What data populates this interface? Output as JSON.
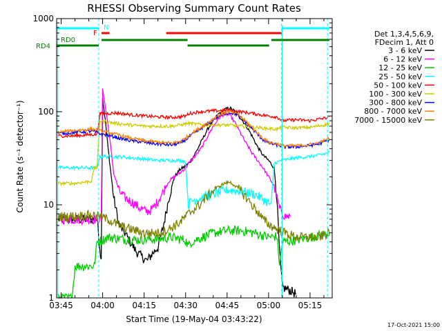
{
  "chart_data": {
    "type": "line",
    "title": "RHESSI Observing Summary Count Rates",
    "xlabel": "Start Time (19-May-04 03:43:22)",
    "ylabel": "Count Rate (s⁻¹ detector⁻¹)",
    "yscale": "log",
    "ylim": [
      1,
      1000
    ],
    "xlim_minutes": [
      223.37,
      323.0
    ],
    "x_ticks": [
      {
        "label": "03:45",
        "t": 225
      },
      {
        "label": "04:00",
        "t": 240
      },
      {
        "label": "04:15",
        "t": 255
      },
      {
        "label": "04:30",
        "t": 270
      },
      {
        "label": "04:45",
        "t": 285
      },
      {
        "label": "05:00",
        "t": 300
      },
      {
        "label": "05:15",
        "t": 315
      }
    ],
    "y_ticks": [
      {
        "label": "1",
        "v": 1
      },
      {
        "label": "10",
        "v": 10
      },
      {
        "label": "100",
        "v": 100
      },
      {
        "label": "1000",
        "v": 1000
      }
    ],
    "legend_header": [
      "Det 1,3,4,5,6,9,",
      "FDecim 1, Att 0"
    ],
    "series": [
      {
        "name": "3 - 6 keV",
        "color": "#000000",
        "points": [
          [
            224,
            7
          ],
          [
            238,
            7
          ],
          [
            239.5,
            2.5
          ],
          [
            240,
            140
          ],
          [
            241,
            80
          ],
          [
            242,
            40
          ],
          [
            244,
            12
          ],
          [
            246,
            6
          ],
          [
            248,
            5
          ],
          [
            250,
            4
          ],
          [
            252,
            3.2
          ],
          [
            254,
            2.8
          ],
          [
            256,
            2.5
          ],
          [
            258,
            3
          ],
          [
            260,
            3.5
          ],
          [
            262,
            6
          ],
          [
            264,
            12
          ],
          [
            266,
            20
          ],
          [
            268,
            24
          ],
          [
            270,
            26
          ],
          [
            272,
            30
          ],
          [
            274,
            38
          ],
          [
            276,
            50
          ],
          [
            278,
            65
          ],
          [
            280,
            80
          ],
          [
            282,
            95
          ],
          [
            284,
            105
          ],
          [
            286,
            110
          ],
          [
            288,
            100
          ],
          [
            290,
            85
          ],
          [
            292,
            70
          ],
          [
            294,
            55
          ],
          [
            296,
            42
          ],
          [
            298,
            34
          ],
          [
            300,
            30
          ],
          [
            302,
            25
          ],
          [
            303,
            12
          ],
          [
            304,
            3
          ],
          [
            305,
            1.3
          ],
          [
            308,
            1.2
          ],
          [
            310,
            1.1
          ]
        ]
      },
      {
        "name": "6 - 12 keV",
        "color": "#ff00ff",
        "points": [
          [
            224,
            7
          ],
          [
            238,
            7
          ],
          [
            239.5,
            7
          ],
          [
            240,
            180
          ],
          [
            241,
            110
          ],
          [
            242,
            70
          ],
          [
            243,
            40
          ],
          [
            244,
            22
          ],
          [
            246,
            14
          ],
          [
            248,
            12
          ],
          [
            250,
            11
          ],
          [
            252,
            10
          ],
          [
            254,
            9
          ],
          [
            256,
            8.5
          ],
          [
            258,
            9
          ],
          [
            260,
            11
          ],
          [
            262,
            14
          ],
          [
            264,
            18
          ],
          [
            266,
            20
          ],
          [
            268,
            22
          ],
          [
            270,
            25
          ],
          [
            272,
            30
          ],
          [
            274,
            35
          ],
          [
            276,
            42
          ],
          [
            278,
            55
          ],
          [
            280,
            70
          ],
          [
            282,
            85
          ],
          [
            284,
            95
          ],
          [
            286,
            92
          ],
          [
            288,
            75
          ],
          [
            290,
            58
          ],
          [
            292,
            45
          ],
          [
            294,
            36
          ],
          [
            296,
            30
          ],
          [
            298,
            25
          ],
          [
            300,
            20
          ],
          [
            302,
            16
          ],
          [
            304,
            9
          ],
          [
            306,
            7.5
          ],
          [
            308,
            7.5
          ]
        ]
      },
      {
        "name": "12 - 25 keV",
        "color": "#00cc00",
        "points": [
          [
            224,
            1
          ],
          [
            229,
            1
          ],
          [
            230,
            2.2
          ],
          [
            237,
            2.2
          ],
          [
            238,
            4
          ],
          [
            240,
            4.2
          ],
          [
            242,
            4.5
          ],
          [
            250,
            4.2
          ],
          [
            260,
            4.3
          ],
          [
            265,
            4.5
          ],
          [
            268,
            4.3
          ],
          [
            270,
            4.2
          ],
          [
            271,
            3.6
          ],
          [
            272,
            4
          ],
          [
            276,
            4.5
          ],
          [
            280,
            5
          ],
          [
            285,
            5.3
          ],
          [
            290,
            5.3
          ],
          [
            295,
            5
          ],
          [
            298,
            4.7
          ],
          [
            300,
            4.5
          ],
          [
            303,
            4.6
          ],
          [
            304,
            2.3
          ],
          [
            305,
            4
          ],
          [
            310,
            4.2
          ],
          [
            315,
            4.5
          ],
          [
            320,
            4.8
          ],
          [
            322,
            5
          ]
        ]
      },
      {
        "name": "25 - 50 keV",
        "color": "#00ffff",
        "points": [
          [
            224,
            25
          ],
          [
            235,
            25
          ],
          [
            238,
            25
          ],
          [
            239,
            33
          ],
          [
            245,
            33
          ],
          [
            250,
            32
          ],
          [
            255,
            31
          ],
          [
            260,
            30
          ],
          [
            265,
            30
          ],
          [
            268,
            30
          ],
          [
            270,
            29
          ],
          [
            271,
            10
          ],
          [
            272,
            11
          ],
          [
            276,
            12
          ],
          [
            280,
            13
          ],
          [
            285,
            14.5
          ],
          [
            290,
            14
          ],
          [
            295,
            13
          ],
          [
            298,
            11.5
          ],
          [
            300,
            10.5
          ],
          [
            301,
            10
          ],
          [
            302,
            28
          ],
          [
            305,
            30
          ],
          [
            310,
            32
          ],
          [
            315,
            33
          ],
          [
            320,
            35
          ],
          [
            322,
            37
          ]
        ]
      },
      {
        "name": "50 - 100 keV",
        "color": "#ff0000",
        "points": [
          [
            224,
            55
          ],
          [
            230,
            55
          ],
          [
            236,
            57
          ],
          [
            238,
            57
          ],
          [
            239,
            95
          ],
          [
            245,
            97
          ],
          [
            250,
            93
          ],
          [
            255,
            90
          ],
          [
            260,
            88
          ],
          [
            265,
            87
          ],
          [
            268,
            88
          ],
          [
            270,
            90
          ],
          [
            271,
            95
          ],
          [
            275,
            100
          ],
          [
            280,
            102
          ],
          [
            285,
            104
          ],
          [
            290,
            100
          ],
          [
            295,
            95
          ],
          [
            300,
            90
          ],
          [
            303,
            88
          ],
          [
            305,
            80
          ],
          [
            310,
            82
          ],
          [
            315,
            80
          ],
          [
            320,
            85
          ],
          [
            322,
            88
          ]
        ]
      },
      {
        "name": "100 - 300 keV",
        "color": "#cccc00",
        "points": [
          [
            224,
            17
          ],
          [
            230,
            17
          ],
          [
            236,
            18
          ],
          [
            237,
            25
          ],
          [
            238,
            25
          ],
          [
            239,
            80
          ],
          [
            245,
            75
          ],
          [
            250,
            72
          ],
          [
            255,
            70
          ],
          [
            260,
            70
          ],
          [
            265,
            70
          ],
          [
            268,
            72
          ],
          [
            270,
            74
          ],
          [
            271,
            75
          ],
          [
            275,
            73
          ],
          [
            280,
            72
          ],
          [
            285,
            72
          ],
          [
            290,
            70
          ],
          [
            295,
            68
          ],
          [
            300,
            66
          ],
          [
            303,
            65
          ],
          [
            305,
            68
          ],
          [
            310,
            67
          ],
          [
            315,
            68
          ],
          [
            320,
            72
          ],
          [
            322,
            75
          ]
        ]
      },
      {
        "name": "300 - 800 keV",
        "color": "#0000ff",
        "points": [
          [
            224,
            58
          ],
          [
            230,
            60
          ],
          [
            236,
            62
          ],
          [
            238,
            60
          ],
          [
            239,
            58
          ],
          [
            242,
            56
          ],
          [
            246,
            52
          ],
          [
            250,
            49
          ],
          [
            255,
            47
          ],
          [
            260,
            45
          ],
          [
            265,
            44
          ],
          [
            268,
            46
          ],
          [
            270,
            50
          ],
          [
            272,
            56
          ],
          [
            275,
            64
          ],
          [
            278,
            74
          ],
          [
            281,
            86
          ],
          [
            284,
            95
          ],
          [
            286,
            98
          ],
          [
            288,
            95
          ],
          [
            290,
            86
          ],
          [
            292,
            76
          ],
          [
            294,
            66
          ],
          [
            296,
            57
          ],
          [
            298,
            50
          ],
          [
            300,
            46
          ],
          [
            303,
            44
          ],
          [
            306,
            42
          ],
          [
            310,
            42
          ],
          [
            314,
            43
          ],
          [
            318,
            45
          ],
          [
            322,
            50
          ]
        ]
      },
      {
        "name": "800 - 7000 keV",
        "color": "#ff8000",
        "points": [
          [
            224,
            60
          ],
          [
            230,
            63
          ],
          [
            236,
            65
          ],
          [
            238,
            64
          ],
          [
            239,
            62
          ],
          [
            242,
            60
          ],
          [
            246,
            56
          ],
          [
            250,
            52
          ],
          [
            255,
            49
          ],
          [
            260,
            47
          ],
          [
            265,
            46
          ],
          [
            268,
            48
          ],
          [
            270,
            52
          ],
          [
            272,
            58
          ],
          [
            275,
            66
          ],
          [
            278,
            76
          ],
          [
            281,
            88
          ],
          [
            284,
            98
          ],
          [
            286,
            100
          ],
          [
            288,
            96
          ],
          [
            290,
            88
          ],
          [
            292,
            78
          ],
          [
            294,
            68
          ],
          [
            296,
            59
          ],
          [
            298,
            52
          ],
          [
            300,
            47
          ],
          [
            303,
            45
          ],
          [
            306,
            43
          ],
          [
            310,
            43
          ],
          [
            314,
            44
          ],
          [
            318,
            46
          ],
          [
            322,
            52
          ]
        ]
      },
      {
        "name": "7000 - 15000 keV",
        "color": "#808000",
        "points": [
          [
            224,
            7.5
          ],
          [
            230,
            7.6
          ],
          [
            236,
            7.8
          ],
          [
            239,
            7.5
          ],
          [
            242,
            7
          ],
          [
            246,
            6
          ],
          [
            250,
            5.5
          ],
          [
            255,
            5
          ],
          [
            260,
            5
          ],
          [
            264,
            5.5
          ],
          [
            268,
            6.5
          ],
          [
            270,
            7.5
          ],
          [
            272,
            8.5
          ],
          [
            275,
            10
          ],
          [
            278,
            12.5
          ],
          [
            281,
            15
          ],
          [
            284,
            17
          ],
          [
            286,
            17.5
          ],
          [
            288,
            16
          ],
          [
            290,
            14
          ],
          [
            292,
            12
          ],
          [
            294,
            10
          ],
          [
            296,
            8.5
          ],
          [
            298,
            7
          ],
          [
            300,
            6.2
          ],
          [
            303,
            5.5
          ],
          [
            306,
            5
          ],
          [
            310,
            4.5
          ],
          [
            314,
            4.5
          ],
          [
            318,
            4.5
          ],
          [
            322,
            5
          ]
        ]
      }
    ],
    "state_bars": [
      {
        "label": "N",
        "color": "#00ffff",
        "segments": [
          [
            223.4,
            238.6
          ],
          [
            304.7,
            322
          ]
        ],
        "level": "top"
      },
      {
        "label": "F",
        "color": "#ff0000",
        "segments": [
          [
            239.6,
            242.5
          ],
          [
            263.0,
            304.7
          ]
        ],
        "level": "second"
      },
      {
        "label": "RD0",
        "color": "#008000",
        "segments": [
          [
            239.6,
            270.7
          ],
          [
            301.0,
            322
          ]
        ],
        "level": "third"
      },
      {
        "label": "RD4",
        "color": "#008000",
        "segments": [
          [
            223.4,
            238.6
          ],
          [
            270.7,
            300.2
          ]
        ],
        "level": "fourth"
      }
    ],
    "dashed_markers": [
      238.6,
      304.7,
      321.3
    ],
    "solid_markers": [
      223.8,
      304.9
    ]
  },
  "footer_date": "17-Oct-2021 15:00"
}
